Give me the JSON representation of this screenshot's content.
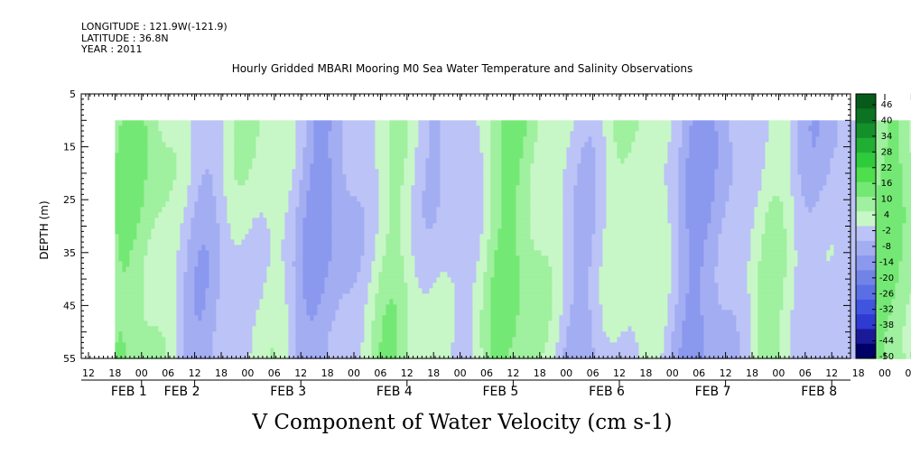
{
  "header": {
    "longitude": "LONGITUDE : 121.9W(-121.9)",
    "latitude": "LATITUDE : 36.8N",
    "year": "YEAR : 2011"
  },
  "chart_data": {
    "type": "heatmap",
    "title": "Hourly Gridded MBARI Mooring M0 Sea Water Temperature and Salinity Observations",
    "xlabel": "V Component of Water Velocity (cm s-1)",
    "ylabel": "DEPTH (m)",
    "ylim": [
      5,
      55
    ],
    "y_inverted": true,
    "y_ticks": [
      5,
      15,
      25,
      35,
      45,
      55
    ],
    "x_start_hours_label": "12",
    "x_hour_ticks": [
      "12",
      "18",
      "00",
      "06",
      "12",
      "18",
      "00",
      "06",
      "12",
      "18",
      "00",
      "06",
      "12",
      "18",
      "00",
      "06",
      "12",
      "18",
      "00",
      "06",
      "12",
      "18",
      "00",
      "06",
      "12",
      "18",
      "00",
      "06",
      "12",
      "18",
      "00",
      "06",
      "12"
    ],
    "x_day_labels": [
      {
        "label": "FEB  1",
        "after_tick": 2
      },
      {
        "label": "FEB  2",
        "after_tick": 4
      },
      {
        "label": "FEB  3",
        "after_tick": 8
      },
      {
        "label": "FEB  4",
        "after_tick": 12
      },
      {
        "label": "FEB  5",
        "after_tick": 16
      },
      {
        "label": "FEB  6",
        "after_tick": 20
      },
      {
        "label": "FEB  7",
        "after_tick": 24
      },
      {
        "label": "FEB  8",
        "after_tick": 28
      }
    ],
    "data_depth_range": [
      10,
      55
    ],
    "data_x_start_tick": 1,
    "data_x_end_tick": 32,
    "colorbar": {
      "levels": [
        "46",
        "40",
        "34",
        "28",
        "22",
        "16",
        "10",
        "4",
        "-2",
        "-8",
        "-14",
        "-20",
        "-26",
        "-32",
        "-38",
        "-44",
        "-50"
      ],
      "min": -50,
      "max": 50,
      "negative_colors": [
        "#000066",
        "#1a1a99",
        "#2e3ad1",
        "#3f55e0",
        "#5a6fe6",
        "#7283e8",
        "#8a98ee",
        "#a3adf2",
        "#bcc3f6"
      ],
      "positive_colors": [
        "#c7f7c7",
        "#9ff09f",
        "#74e874",
        "#4ede4e",
        "#2ecb3c",
        "#20ae33",
        "#14902a",
        "#0b7322",
        "#065a1a"
      ]
    },
    "pattern_summary": "alternating bands of northward (green, positive) and southward (blue, negative) velocity with near-vertical structure over depth"
  }
}
